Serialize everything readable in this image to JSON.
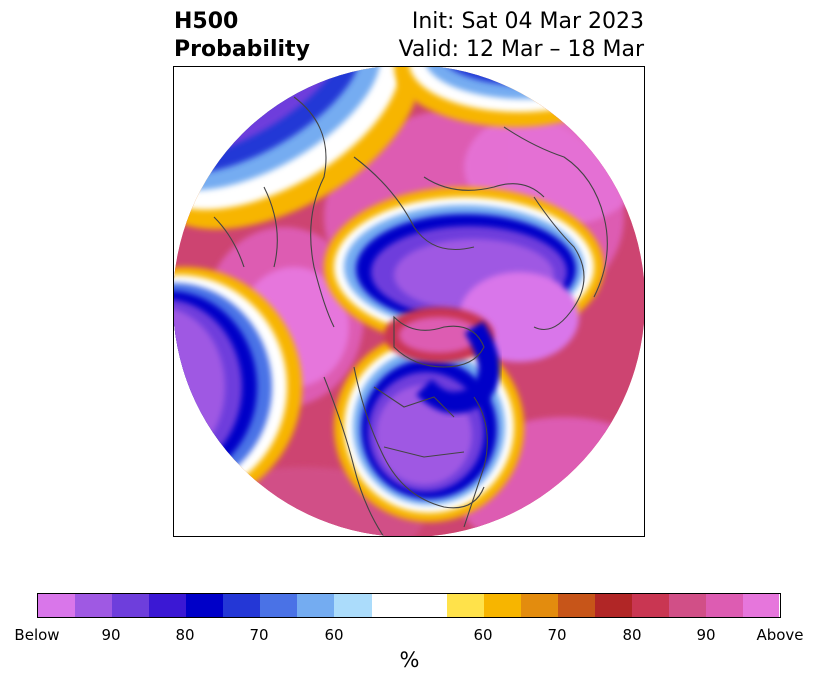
{
  "title": {
    "left_line1": "H500",
    "left_line2": "Probability",
    "right_line1": "Init: Sat 04 Mar 2023",
    "right_line2": "Valid: 12 Mar – 18 Mar"
  },
  "map": {
    "projection": "north polar stereographic",
    "field": "500 hPa height anomaly probability",
    "description_colors": {
      "below": "#9a55e2",
      "above": "#de5fb0",
      "neutral": "#ffffff"
    }
  },
  "colorbar": {
    "colors": [
      "#d976ea",
      "#9f59e3",
      "#6e3edc",
      "#3b18d4",
      "#0000c8",
      "#2437d6",
      "#4a72e6",
      "#74acf1",
      "#abdcfb",
      "#ffffff",
      "#ffffff",
      "#ffe24a",
      "#f7b500",
      "#e38c0e",
      "#c75519",
      "#b12626",
      "#c93652",
      "#d14f87",
      "#dd5cb2",
      "#e676dc"
    ],
    "tick_labels": [
      "Below",
      "90",
      "80",
      "70",
      "60",
      "60",
      "70",
      "80",
      "90",
      "Above"
    ],
    "label": "%"
  }
}
